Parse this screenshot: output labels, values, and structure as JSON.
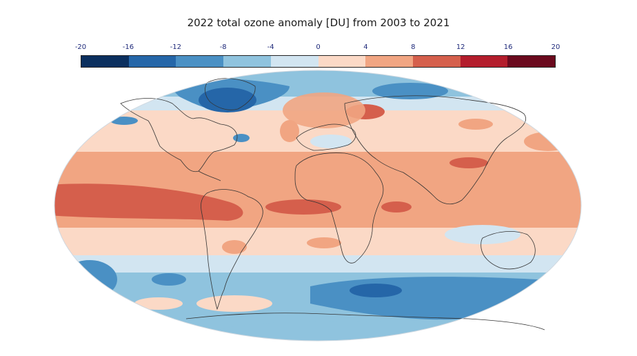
{
  "title": "2022 total ozone anomaly [DU] from 2003 to 2021",
  "colorbar": {
    "ticks": [
      "-20",
      "-16",
      "-12",
      "-8",
      "-4",
      "0",
      "4",
      "8",
      "12",
      "16",
      "20"
    ],
    "colors": [
      "#0b2f5e",
      "#2566a8",
      "#4a90c4",
      "#8fc3de",
      "#d2e5f1",
      "#fbd9c6",
      "#f1a582",
      "#d55f4c",
      "#b31d2c",
      "#6b0a1e"
    ]
  }
}
